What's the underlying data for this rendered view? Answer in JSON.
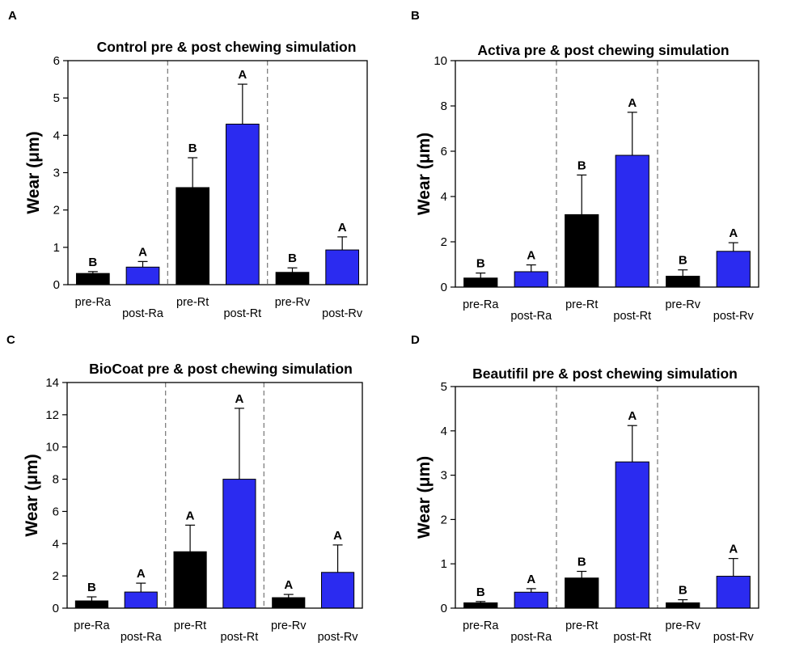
{
  "colors": {
    "pre": "#000000",
    "post": "#2b2bf0",
    "divider": "#808080",
    "background": "#ffffff"
  },
  "chart_data": [
    {
      "panel": "A",
      "type": "bar",
      "title": "Control pre & post chewing simulation",
      "ylabel": "Wear (μm)",
      "xlabel": "",
      "ylim": [
        0,
        6
      ],
      "yticks": [
        "0",
        "1",
        "2",
        "3",
        "4",
        "5",
        "6"
      ],
      "categories": [
        "pre-Ra",
        "post-Ra",
        "pre-Rt",
        "post-Rt",
        "pre-Rv",
        "post-Rv"
      ],
      "values": [
        0.3,
        0.47,
        2.6,
        4.3,
        0.33,
        0.93
      ],
      "errors": [
        0.05,
        0.15,
        0.8,
        1.07,
        0.12,
        0.35
      ],
      "letters": [
        "B",
        "A",
        "B",
        "A",
        "B",
        "A"
      ]
    },
    {
      "panel": "B",
      "type": "bar",
      "title": "Activa pre & post chewing simulation",
      "ylabel": "Wear (μm)",
      "xlabel": "",
      "ylim": [
        0,
        10
      ],
      "yticks": [
        "0",
        "2",
        "4",
        "6",
        "8",
        "10"
      ],
      "categories": [
        "pre-Ra",
        "post-Ra",
        "pre-Rt",
        "post-Rt",
        "pre-Rv",
        "post-Rv"
      ],
      "values": [
        0.4,
        0.68,
        3.2,
        5.82,
        0.48,
        1.58
      ],
      "errors": [
        0.22,
        0.3,
        1.75,
        1.9,
        0.28,
        0.38
      ],
      "letters": [
        "B",
        "A",
        "B",
        "A",
        "B",
        "A"
      ]
    },
    {
      "panel": "C",
      "type": "bar",
      "title": "BioCoat pre & post chewing simulation",
      "ylabel": "Wear (μm)",
      "xlabel": "",
      "ylim": [
        0,
        14
      ],
      "yticks": [
        "0",
        "2",
        "4",
        "6",
        "8",
        "10",
        "12",
        "14"
      ],
      "categories": [
        "pre-Ra",
        "post-Ra",
        "pre-Rt",
        "post-Rt",
        "pre-Rv",
        "post-Rv"
      ],
      "values": [
        0.45,
        1.0,
        3.5,
        8.0,
        0.65,
        2.22
      ],
      "errors": [
        0.25,
        0.55,
        1.65,
        4.4,
        0.2,
        1.7
      ],
      "letters": [
        "B",
        "A",
        "A",
        "A",
        "A",
        "A"
      ]
    },
    {
      "panel": "D",
      "type": "bar",
      "title": "Beautifil pre & post chewing simulation",
      "ylabel": "Wear (μm)",
      "xlabel": "",
      "ylim": [
        0,
        5
      ],
      "yticks": [
        "0",
        "1",
        "2",
        "3",
        "4",
        "5"
      ],
      "categories": [
        "pre-Ra",
        "post-Ra",
        "pre-Rt",
        "post-Rt",
        "pre-Rv",
        "post-Rv"
      ],
      "values": [
        0.12,
        0.36,
        0.68,
        3.3,
        0.12,
        0.72
      ],
      "errors": [
        0.03,
        0.08,
        0.15,
        0.82,
        0.07,
        0.4
      ],
      "letters": [
        "B",
        "A",
        "B",
        "A",
        "B",
        "A"
      ]
    }
  ]
}
